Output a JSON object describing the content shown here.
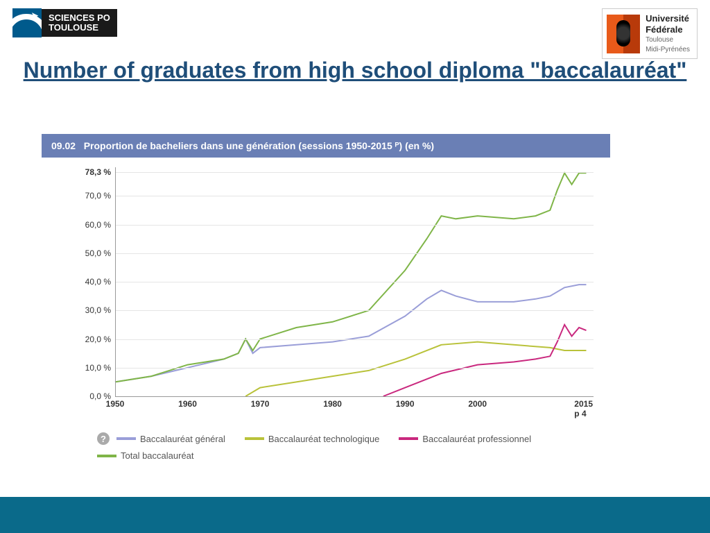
{
  "logos": {
    "left_line1": "SCIENCES PO",
    "left_line2": "TOULOUSE",
    "right_line1": "Université",
    "right_line2": "Fédérale",
    "right_sub1": "Toulouse",
    "right_sub2": "Midi-Pyrénées"
  },
  "title": "Number of graduates from high school diploma \"baccalauréat\"",
  "chart": {
    "header_prefix": "09.02",
    "header_text": "Proportion de bacheliers dans une génération (sessions 1950-2015 ᴾ) (en %)",
    "type": "line",
    "background_color": "#ffffff",
    "grid_color": "#e5e5e5",
    "header_bg": "#6a7fb5",
    "y_peak_label": "78,3 %",
    "y_ticks": [
      0,
      10,
      20,
      30,
      40,
      50,
      60,
      70,
      78.3
    ],
    "y_tick_labels": [
      "0,0 %",
      "10,0 %",
      "20,0 %",
      "30,0 %",
      "40,0 %",
      "50,0 %",
      "60,0 %",
      "70,0 %",
      "78,3 %"
    ],
    "ylim": [
      0,
      80
    ],
    "x_ticks": [
      1950,
      1960,
      1970,
      1980,
      1990,
      2000,
      2015
    ],
    "x_tick_labels": [
      "1950",
      "1960",
      "1970",
      "1980",
      "1990",
      "2000",
      "2015 p 4"
    ],
    "xlim": [
      1950,
      2016
    ],
    "line_width": 2,
    "series": [
      {
        "name": "Baccalauréat général",
        "color": "#9a9ed8",
        "x": [
          1950,
          1955,
          1960,
          1965,
          1967,
          1968,
          1969,
          1970,
          1975,
          1980,
          1985,
          1990,
          1993,
          1995,
          1997,
          2000,
          2005,
          2008,
          2010,
          2012,
          2014,
          2015
        ],
        "y": [
          5,
          7,
          10,
          13,
          15,
          20,
          15,
          17,
          18,
          19,
          21,
          28,
          34,
          37,
          35,
          33,
          33,
          34,
          35,
          38,
          39,
          39
        ]
      },
      {
        "name": "Baccalauréat technologique",
        "color": "#b9c23a",
        "x": [
          1968,
          1970,
          1975,
          1980,
          1985,
          1990,
          1995,
          2000,
          2005,
          2010,
          2012,
          2015
        ],
        "y": [
          0,
          3,
          5,
          7,
          9,
          13,
          18,
          19,
          18,
          17,
          16,
          16
        ]
      },
      {
        "name": "Baccalauréat professionnel",
        "color": "#c9287e",
        "x": [
          1987,
          1990,
          1995,
          2000,
          2005,
          2008,
          2010,
          2011,
          2012,
          2013,
          2014,
          2015
        ],
        "y": [
          0,
          3,
          8,
          11,
          12,
          13,
          14,
          19,
          25,
          21,
          24,
          23
        ]
      },
      {
        "name": "Total baccalauréat",
        "color": "#7fb548",
        "x": [
          1950,
          1955,
          1960,
          1965,
          1967,
          1968,
          1969,
          1970,
          1975,
          1980,
          1985,
          1990,
          1993,
          1995,
          1997,
          2000,
          2005,
          2008,
          2010,
          2011,
          2012,
          2013,
          2014,
          2015
        ],
        "y": [
          5,
          7,
          11,
          13,
          15,
          20,
          16,
          20,
          24,
          26,
          30,
          44,
          55,
          63,
          62,
          63,
          62,
          63,
          65,
          72,
          78,
          74,
          78,
          78
        ]
      }
    ],
    "legend_help_glyph": "?"
  },
  "footer_color": "#0a6a8a"
}
